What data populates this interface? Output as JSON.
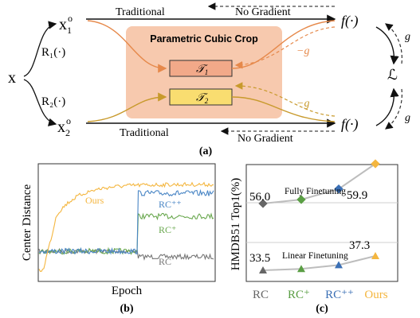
{
  "diagram": {
    "input": "x",
    "crop1": {
      "base": "x",
      "sub": "1",
      "sup": "o"
    },
    "crop2": {
      "base": "x",
      "sub": "2",
      "sup": "o"
    },
    "r1": "R₁(·)",
    "r2": "R₂(·)",
    "top_traditional": "Traditional",
    "top_no_gradient": "No Gradient",
    "bottom_traditional": "Traditional",
    "bottom_no_gradient": "No Gradient",
    "f_top": "f(·)",
    "f_bottom": "f(·)",
    "loss": "ℒ",
    "g_top": "g",
    "g_bottom": "g",
    "neg_g_top": "−g",
    "neg_g_bottom": "−g",
    "pcc_title": "Parametric Cubic Crop",
    "t1": {
      "base": "𝒯",
      "sub": "1"
    },
    "t2": {
      "base": "𝒯",
      "sub": "2"
    },
    "caption_a": "(a)",
    "colors": {
      "orange": "#e6894b",
      "gold": "#c89a2c",
      "pcc_bg": "#f7c9ae",
      "t1_fill": "#f2a989",
      "t2_fill": "#f9dd70"
    }
  },
  "panel_b": {
    "ylabel": "Center Distance",
    "xlabel": "Epoch",
    "caption": "(b)",
    "labels": {
      "ours": "Ours",
      "rcpp": "RC⁺⁺",
      "rcp": "RC⁺",
      "rc": "RC"
    },
    "colors": {
      "ours": "#f4b63f",
      "rcpp": "#4a86c5",
      "rcp": "#6aa84f",
      "rc": "#777777"
    }
  },
  "chart_data": {
    "type": "line",
    "ylabel": "HMDB51 Top1(%)",
    "categories": [
      "RC",
      "RC⁺",
      "RC⁺⁺",
      "Ours"
    ],
    "series": [
      {
        "name": "Fully Finetuning",
        "values": [
          56.0,
          null,
          null,
          59.9
        ]
      },
      {
        "name": "Linear Finetuning",
        "values": [
          33.5,
          null,
          null,
          37.3
        ]
      }
    ],
    "value_labels": {
      "ff_first": "56.0",
      "ff_last": "59.9",
      "lf_first": "33.5",
      "lf_last": "37.3"
    },
    "caption": "(c)",
    "grid": true,
    "colors": {
      "rc": "#666666",
      "rcp": "#5a9e44",
      "rcpp": "#3a6fb5",
      "ours": "#f4b63f",
      "line": "#bdbdbd"
    }
  }
}
